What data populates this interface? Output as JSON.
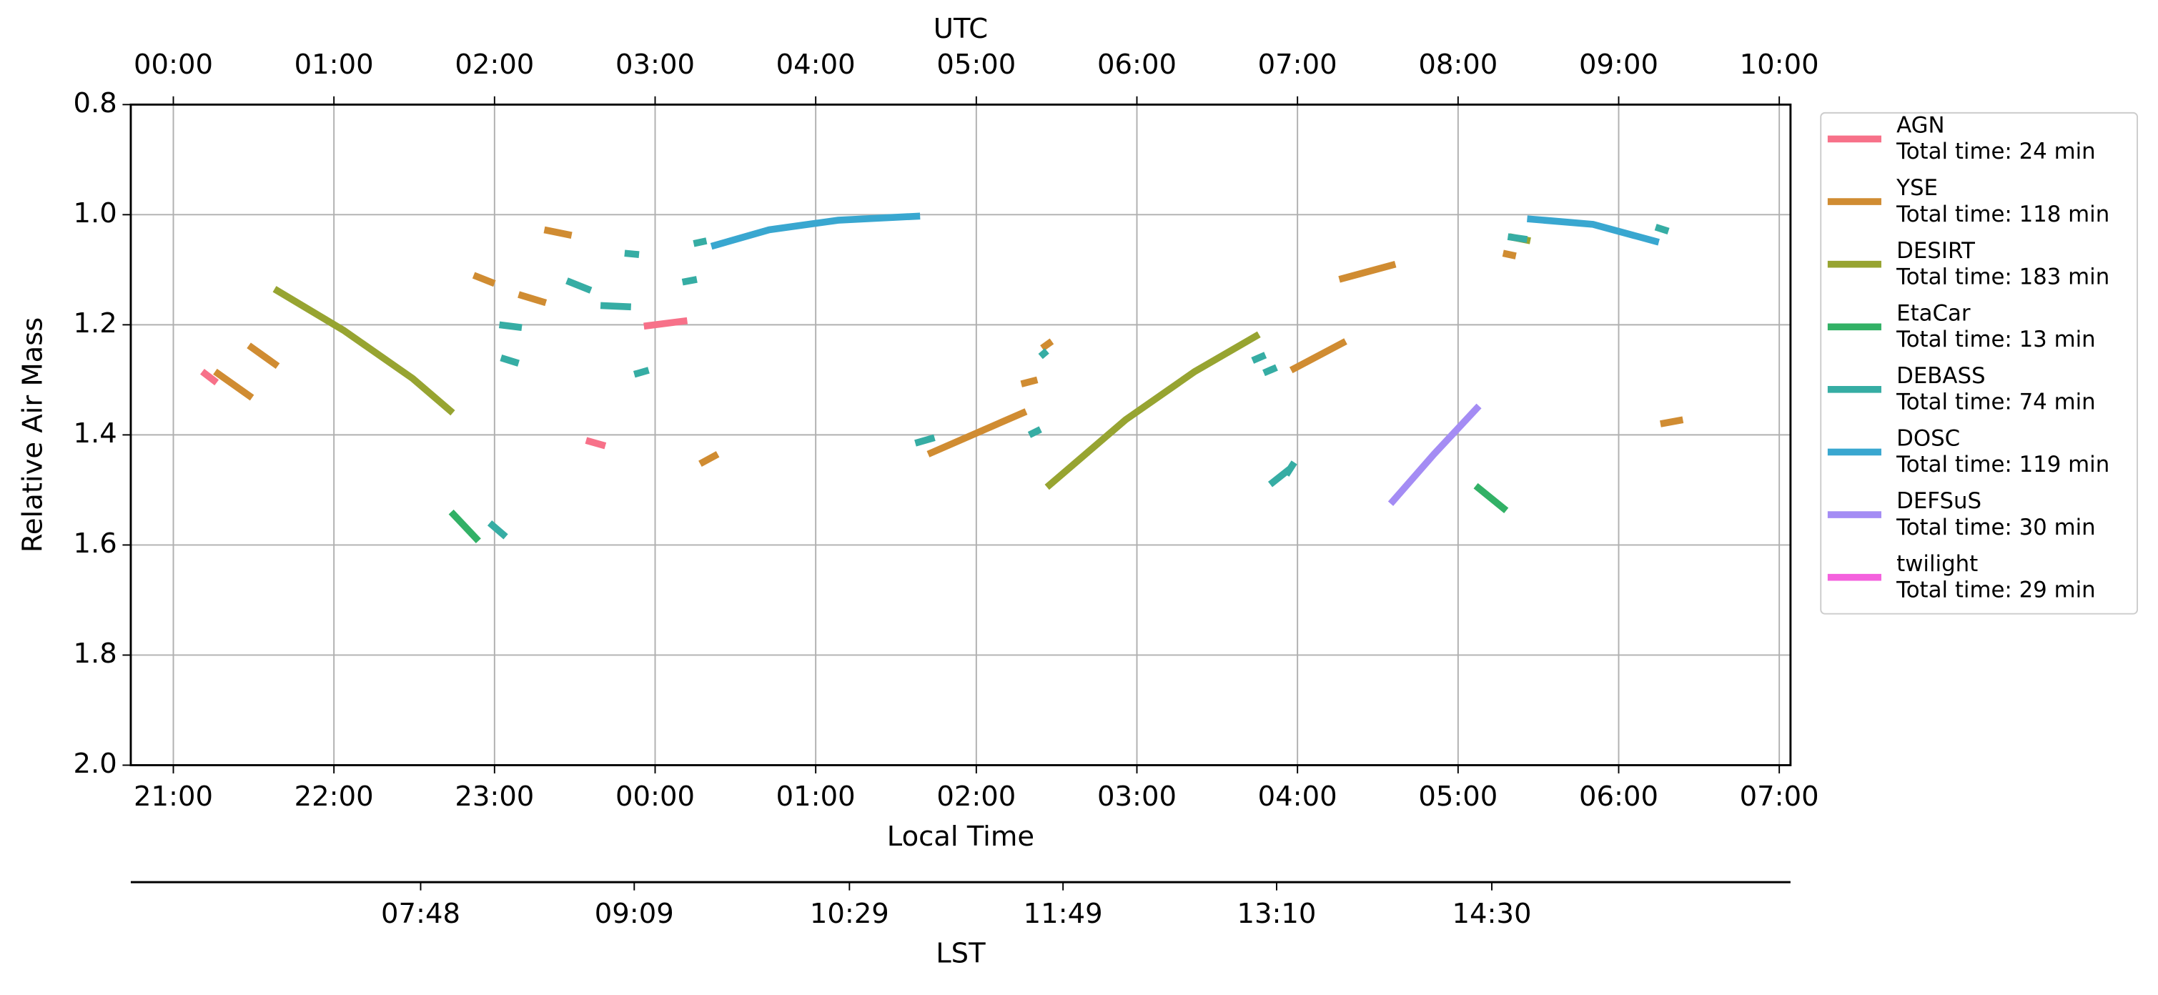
{
  "chart_data": {
    "type": "line",
    "x2label": "UTC",
    "xlabel": "Local Time",
    "x3label": "LST",
    "ylabel": "Relative Air Mass",
    "xlim": [
      20.735,
      31.07
    ],
    "xticks": [
      {
        "value": 21,
        "label": "21:00"
      },
      {
        "value": 22,
        "label": "22:00"
      },
      {
        "value": 23,
        "label": "23:00"
      },
      {
        "value": 24,
        "label": "00:00"
      },
      {
        "value": 25,
        "label": "01:00"
      },
      {
        "value": 26,
        "label": "02:00"
      },
      {
        "value": 27,
        "label": "03:00"
      },
      {
        "value": 28,
        "label": "04:00"
      },
      {
        "value": 29,
        "label": "05:00"
      },
      {
        "value": 30,
        "label": "06:00"
      },
      {
        "value": 31,
        "label": "07:00"
      }
    ],
    "x2ticks": [
      {
        "value": 21,
        "label": "00:00"
      },
      {
        "value": 22,
        "label": "01:00"
      },
      {
        "value": 23,
        "label": "02:00"
      },
      {
        "value": 24,
        "label": "03:00"
      },
      {
        "value": 25,
        "label": "04:00"
      },
      {
        "value": 26,
        "label": "05:00"
      },
      {
        "value": 27,
        "label": "06:00"
      },
      {
        "value": 28,
        "label": "07:00"
      },
      {
        "value": 29,
        "label": "08:00"
      },
      {
        "value": 30,
        "label": "09:00"
      },
      {
        "value": 31,
        "label": "10:00"
      }
    ],
    "x3ticks": [
      {
        "value": 22.54,
        "label": "07:48"
      },
      {
        "value": 23.87,
        "label": "09:09"
      },
      {
        "value": 25.21,
        "label": "10:29"
      },
      {
        "value": 26.54,
        "label": "11:49"
      },
      {
        "value": 27.87,
        "label": "13:10"
      },
      {
        "value": 29.21,
        "label": "14:30"
      }
    ],
    "ylim": [
      0.8,
      2.0
    ],
    "y_inverted": true,
    "yticks": [
      0.8,
      {
        "value": 1,
        "label": "1.0"
      },
      1.2,
      1.4,
      1.6,
      1.8,
      {
        "value": 2,
        "label": "2.0"
      }
    ],
    "grid": true,
    "legend": "outside right",
    "series": [
      {
        "name": "AGN",
        "total_time": "Total time: 24 min",
        "color": "#f77189",
        "x": [
          21.18,
          21.27,
          null,
          23.57,
          23.69,
          null,
          23.93,
          24.2
        ],
        "values": [
          1.285,
          1.305,
          null,
          1.41,
          1.42,
          null,
          1.2025,
          1.1925
        ]
      },
      {
        "name": "YSE",
        "total_time": "Total time: 118 min",
        "color": "#d08c32",
        "x": [
          21.26,
          21.49,
          null,
          21.47,
          21.65,
          null,
          22.87,
          23.0,
          null,
          23.15,
          23.32,
          null,
          23.31,
          23.48,
          null,
          24.28,
          24.39,
          null,
          25.7,
          26.31,
          null,
          26.28,
          26.38,
          null,
          26.41,
          26.47,
          null,
          27.96,
          28.3,
          null,
          28.26,
          28.61,
          null,
          29.28,
          29.36,
          null,
          30.26,
          30.4
        ],
        "values": [
          1.285,
          1.3325,
          null,
          1.2375,
          1.275,
          null,
          1.11,
          1.125,
          null,
          1.145,
          1.16,
          null,
          1.0275,
          1.0375,
          null,
          1.4525,
          1.435,
          null,
          1.435,
          1.3575,
          null,
          1.3075,
          1.3,
          null,
          1.2425,
          1.23,
          null,
          1.2825,
          1.23,
          null,
          1.1175,
          1.09,
          null,
          1.07,
          1.075,
          null,
          1.38,
          1.3725
        ]
      },
      {
        "name": "DESIRT",
        "total_time": "Total time: 183 min",
        "color": "#97a431",
        "x": [
          21.63,
          22.06,
          22.49,
          22.74,
          null,
          26.44,
          26.93,
          27.36,
          27.76,
          null,
          29.32,
          29.45
        ],
        "values": [
          1.135,
          1.21,
          1.2975,
          1.36,
          null,
          1.495,
          1.3725,
          1.285,
          1.2175,
          null,
          1.04,
          1.0475
        ]
      },
      {
        "name": "EtaCar",
        "total_time": "Total time: 13 min",
        "color": "#32b166",
        "x": [
          22.73,
          22.9,
          null,
          29.11,
          29.3
        ],
        "values": [
          1.54,
          1.5925,
          null,
          1.4925,
          1.5375
        ]
      },
      {
        "name": "DEBASS",
        "total_time": "Total time: 74 min",
        "color": "#36ada4",
        "x": [
          22.97,
          23.07,
          null,
          23.03,
          23.17,
          null,
          23.04,
          23.15,
          null,
          23.45,
          23.6,
          null,
          23.66,
          23.85,
          null,
          23.81,
          23.9,
          null,
          23.87,
          23.96,
          null,
          24.17,
          24.26,
          null,
          24.24,
          24.32,
          null,
          25.62,
          25.74,
          null,
          26.33,
          26.4,
          null,
          26.4,
          26.44,
          null,
          27.72,
          27.8,
          null,
          27.79,
          27.87,
          null,
          27.83,
          27.96,
          null,
          27.93,
          27.98,
          null,
          29.31,
          29.43,
          null,
          30.23,
          30.31
        ],
        "values": [
          1.56,
          1.585,
          null,
          1.2,
          1.205,
          null,
          1.26,
          1.27,
          null,
          1.12,
          1.1375,
          null,
          1.165,
          1.1675,
          null,
          1.07,
          1.0725,
          null,
          1.29,
          1.2825,
          null,
          1.1225,
          1.1175,
          null,
          1.0525,
          1.0475,
          null,
          1.415,
          1.405,
          null,
          1.4,
          1.39,
          null,
          1.2575,
          1.2475,
          null,
          1.265,
          1.255,
          null,
          1.2875,
          1.2775,
          null,
          1.49,
          1.46,
          null,
          1.4725,
          1.45,
          null,
          1.04,
          1.045,
          null,
          1.0225,
          1.03
        ]
      },
      {
        "name": "DOSC",
        "total_time": "Total time: 119 min",
        "color": "#39a7d0",
        "x": [
          24.35,
          24.71,
          25.14,
          25.65,
          null,
          29.43,
          29.84,
          30.25
        ],
        "values": [
          1.0575,
          1.0275,
          1.01,
          1.0025,
          null,
          1.0075,
          1.0175,
          1.05
        ]
      },
      {
        "name": "DEFSuS",
        "total_time": "Total time: 30 min",
        "color": "#a48cf4",
        "x": [
          28.58,
          28.85,
          29.13
        ],
        "values": [
          1.525,
          1.435,
          1.3475
        ]
      },
      {
        "name": "twilight",
        "total_time": "Total time: 29 min",
        "color": "#f461dd",
        "x": [],
        "values": []
      }
    ]
  }
}
